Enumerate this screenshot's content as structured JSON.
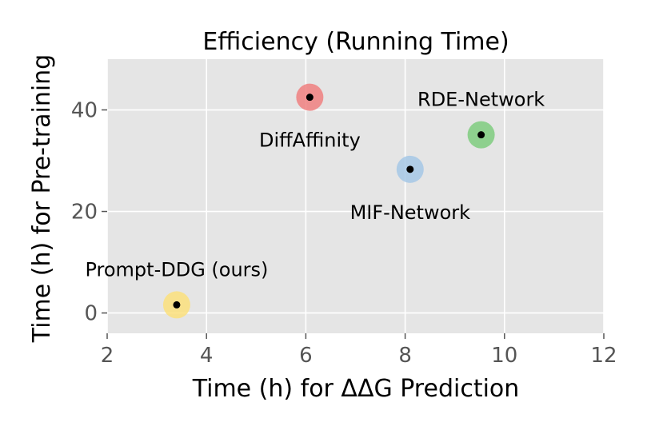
{
  "chart_data": {
    "type": "scatter",
    "title": "Efficiency (Running Time)",
    "xlabel": "Time (h) for ΔΔG Prediction",
    "ylabel": "Time (h) for Pre-training",
    "xlim": [
      2,
      12
    ],
    "ylim": [
      -4,
      50
    ],
    "xticks": [
      2,
      4,
      6,
      8,
      10,
      12
    ],
    "yticks": [
      0,
      20,
      40
    ],
    "grid": true,
    "points": [
      {
        "label": "Prompt-DDG (ours)",
        "x": 3.4,
        "y": 1.6,
        "color": "#fce17c",
        "label_pos": "above"
      },
      {
        "label": "DiffAffinity",
        "x": 6.08,
        "y": 42.5,
        "color": "#f08080",
        "label_pos": "below"
      },
      {
        "label": "MIF-Network",
        "x": 8.1,
        "y": 28.3,
        "color": "#a6c8e6",
        "label_pos": "below"
      },
      {
        "label": "RDE-Network",
        "x": 9.53,
        "y": 35.1,
        "color": "#7fcc7f",
        "label_pos": "above"
      }
    ]
  }
}
